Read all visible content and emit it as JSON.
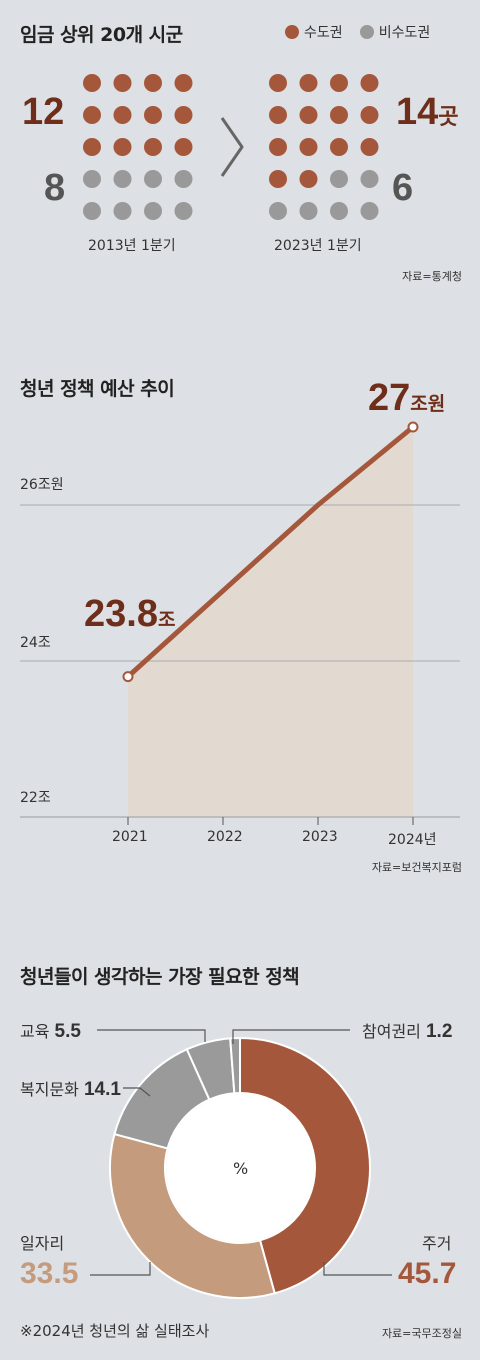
{
  "colors": {
    "metro": "#a5573c",
    "nonmetro": "#999999",
    "accent_dark": "#6e2e1a",
    "line": "#a5573c",
    "area": "#e2dad0",
    "grid": "#a9abae"
  },
  "section1": {
    "title": "임금 상위 20개 시군",
    "legend_metro": "수도권",
    "legend_nonmetro": "비수도권",
    "left": {
      "metro_count": "12",
      "nonmetro_count": "8",
      "period": "2013년 1분기"
    },
    "right": {
      "metro_count": "14",
      "metro_unit": "곳",
      "nonmetro_count": "6",
      "period": "2023년 1분기"
    },
    "compare_symbol": ">",
    "source": "자료=통계청"
  },
  "section2": {
    "title": "청년 정책 예산 추이",
    "start_value": "23.8",
    "start_unit": "조",
    "end_value": "27",
    "end_unit": "조원",
    "source": "자료=보건복지포럼"
  },
  "section3": {
    "title": "청년들이 생각하는 가장 필요한 정책",
    "center_label": "%",
    "labels": {
      "education": "교육",
      "education_value": "5.5",
      "political": "참여권리",
      "political_value": "1.2",
      "welfare": "복지문화",
      "welfare_value": "14.1",
      "jobs": "일자리",
      "jobs_value": "33.5",
      "housing": "주거",
      "housing_value": "45.7"
    },
    "note": "※2024년 청년의 삶 실태조사",
    "source": "자료=국무조정실"
  },
  "chart_data": [
    {
      "type": "scatter",
      "title": "임금 상위 20개 시군",
      "categories": [
        "2013년 1분기",
        "2023년 1분기"
      ],
      "series": [
        {
          "name": "수도권",
          "values": [
            12,
            14
          ]
        },
        {
          "name": "비수도권",
          "values": [
            8,
            6
          ]
        }
      ],
      "legend": "top-right"
    },
    {
      "type": "area",
      "title": "청년 정책 예산 추이",
      "x": [
        "2021",
        "2022",
        "2023",
        "2024년"
      ],
      "values": [
        23.8,
        24.9,
        26.0,
        27.0
      ],
      "ylim": [
        22,
        27
      ],
      "yticks": [
        {
          "value": 22,
          "label": "22조"
        },
        {
          "value": 24,
          "label": "24조"
        },
        {
          "value": 26,
          "label": "26조원"
        }
      ],
      "grid": true
    },
    {
      "type": "pie",
      "title": "청년들이 생각하는 가장 필요한 정책",
      "categories": [
        "주거",
        "일자리",
        "복지문화",
        "교육",
        "참여권리"
      ],
      "values": [
        45.7,
        33.5,
        14.1,
        5.5,
        1.2
      ],
      "colors": [
        "#a5573c",
        "#c49c7d",
        "#9a9a9a",
        "#9a9a9a",
        "#9a9a9a"
      ]
    }
  ]
}
